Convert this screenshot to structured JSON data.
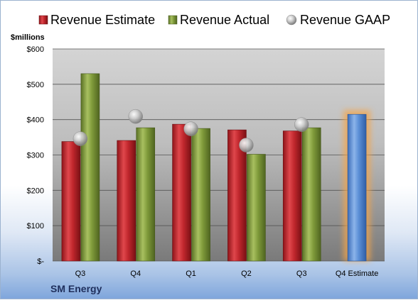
{
  "chart_data": {
    "type": "bar",
    "title": "",
    "unit_label": "$millions",
    "company": "SM Energy",
    "categories": [
      "Q3",
      "Q4",
      "Q1",
      "Q2",
      "Q3",
      "Q4 Estimate"
    ],
    "series": [
      {
        "name": "Revenue Estimate",
        "type": "bar",
        "values": [
          338,
          341,
          387,
          371,
          368,
          null
        ]
      },
      {
        "name": "Revenue Actual",
        "type": "bar",
        "values": [
          530,
          377,
          375,
          302,
          377,
          null
        ]
      },
      {
        "name": "Revenue GAAP",
        "type": "scatter",
        "values": [
          346,
          409,
          374,
          328,
          386,
          null
        ]
      }
    ],
    "highlight": {
      "category": "Q4 Estimate",
      "value": 415
    },
    "y_ticks": [
      "$-",
      "$100",
      "$200",
      "$300",
      "$400",
      "$500",
      "$600"
    ],
    "ylim": [
      0,
      600
    ],
    "grid": true,
    "legend": "top",
    "colors": {
      "estimate": "#c0272d",
      "actual": "#7f9a3a",
      "gaap": "#b8b8b8",
      "highlight": "#5b8fd6",
      "glow": "#f5a54a"
    }
  }
}
